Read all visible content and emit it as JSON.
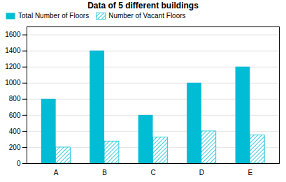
{
  "chart_data": {
    "type": "bar",
    "title": "Data of 5 different buildings",
    "categories": [
      "A",
      "B",
      "C",
      "D",
      "E"
    ],
    "series": [
      {
        "name": "Total Number of Floors",
        "color": "#00BCD4",
        "values": [
          800,
          1400,
          600,
          1000,
          1200
        ]
      },
      {
        "name": "Number of Vacant Floors",
        "color": "#00BCD4",
        "values": [
          200,
          275,
          325,
          400,
          350
        ]
      }
    ],
    "ylim": [
      0,
      1700
    ],
    "yticks": [
      0,
      200,
      400,
      600,
      800,
      1000,
      1200,
      1400,
      1600
    ],
    "grid": true,
    "legend": "upper left"
  }
}
